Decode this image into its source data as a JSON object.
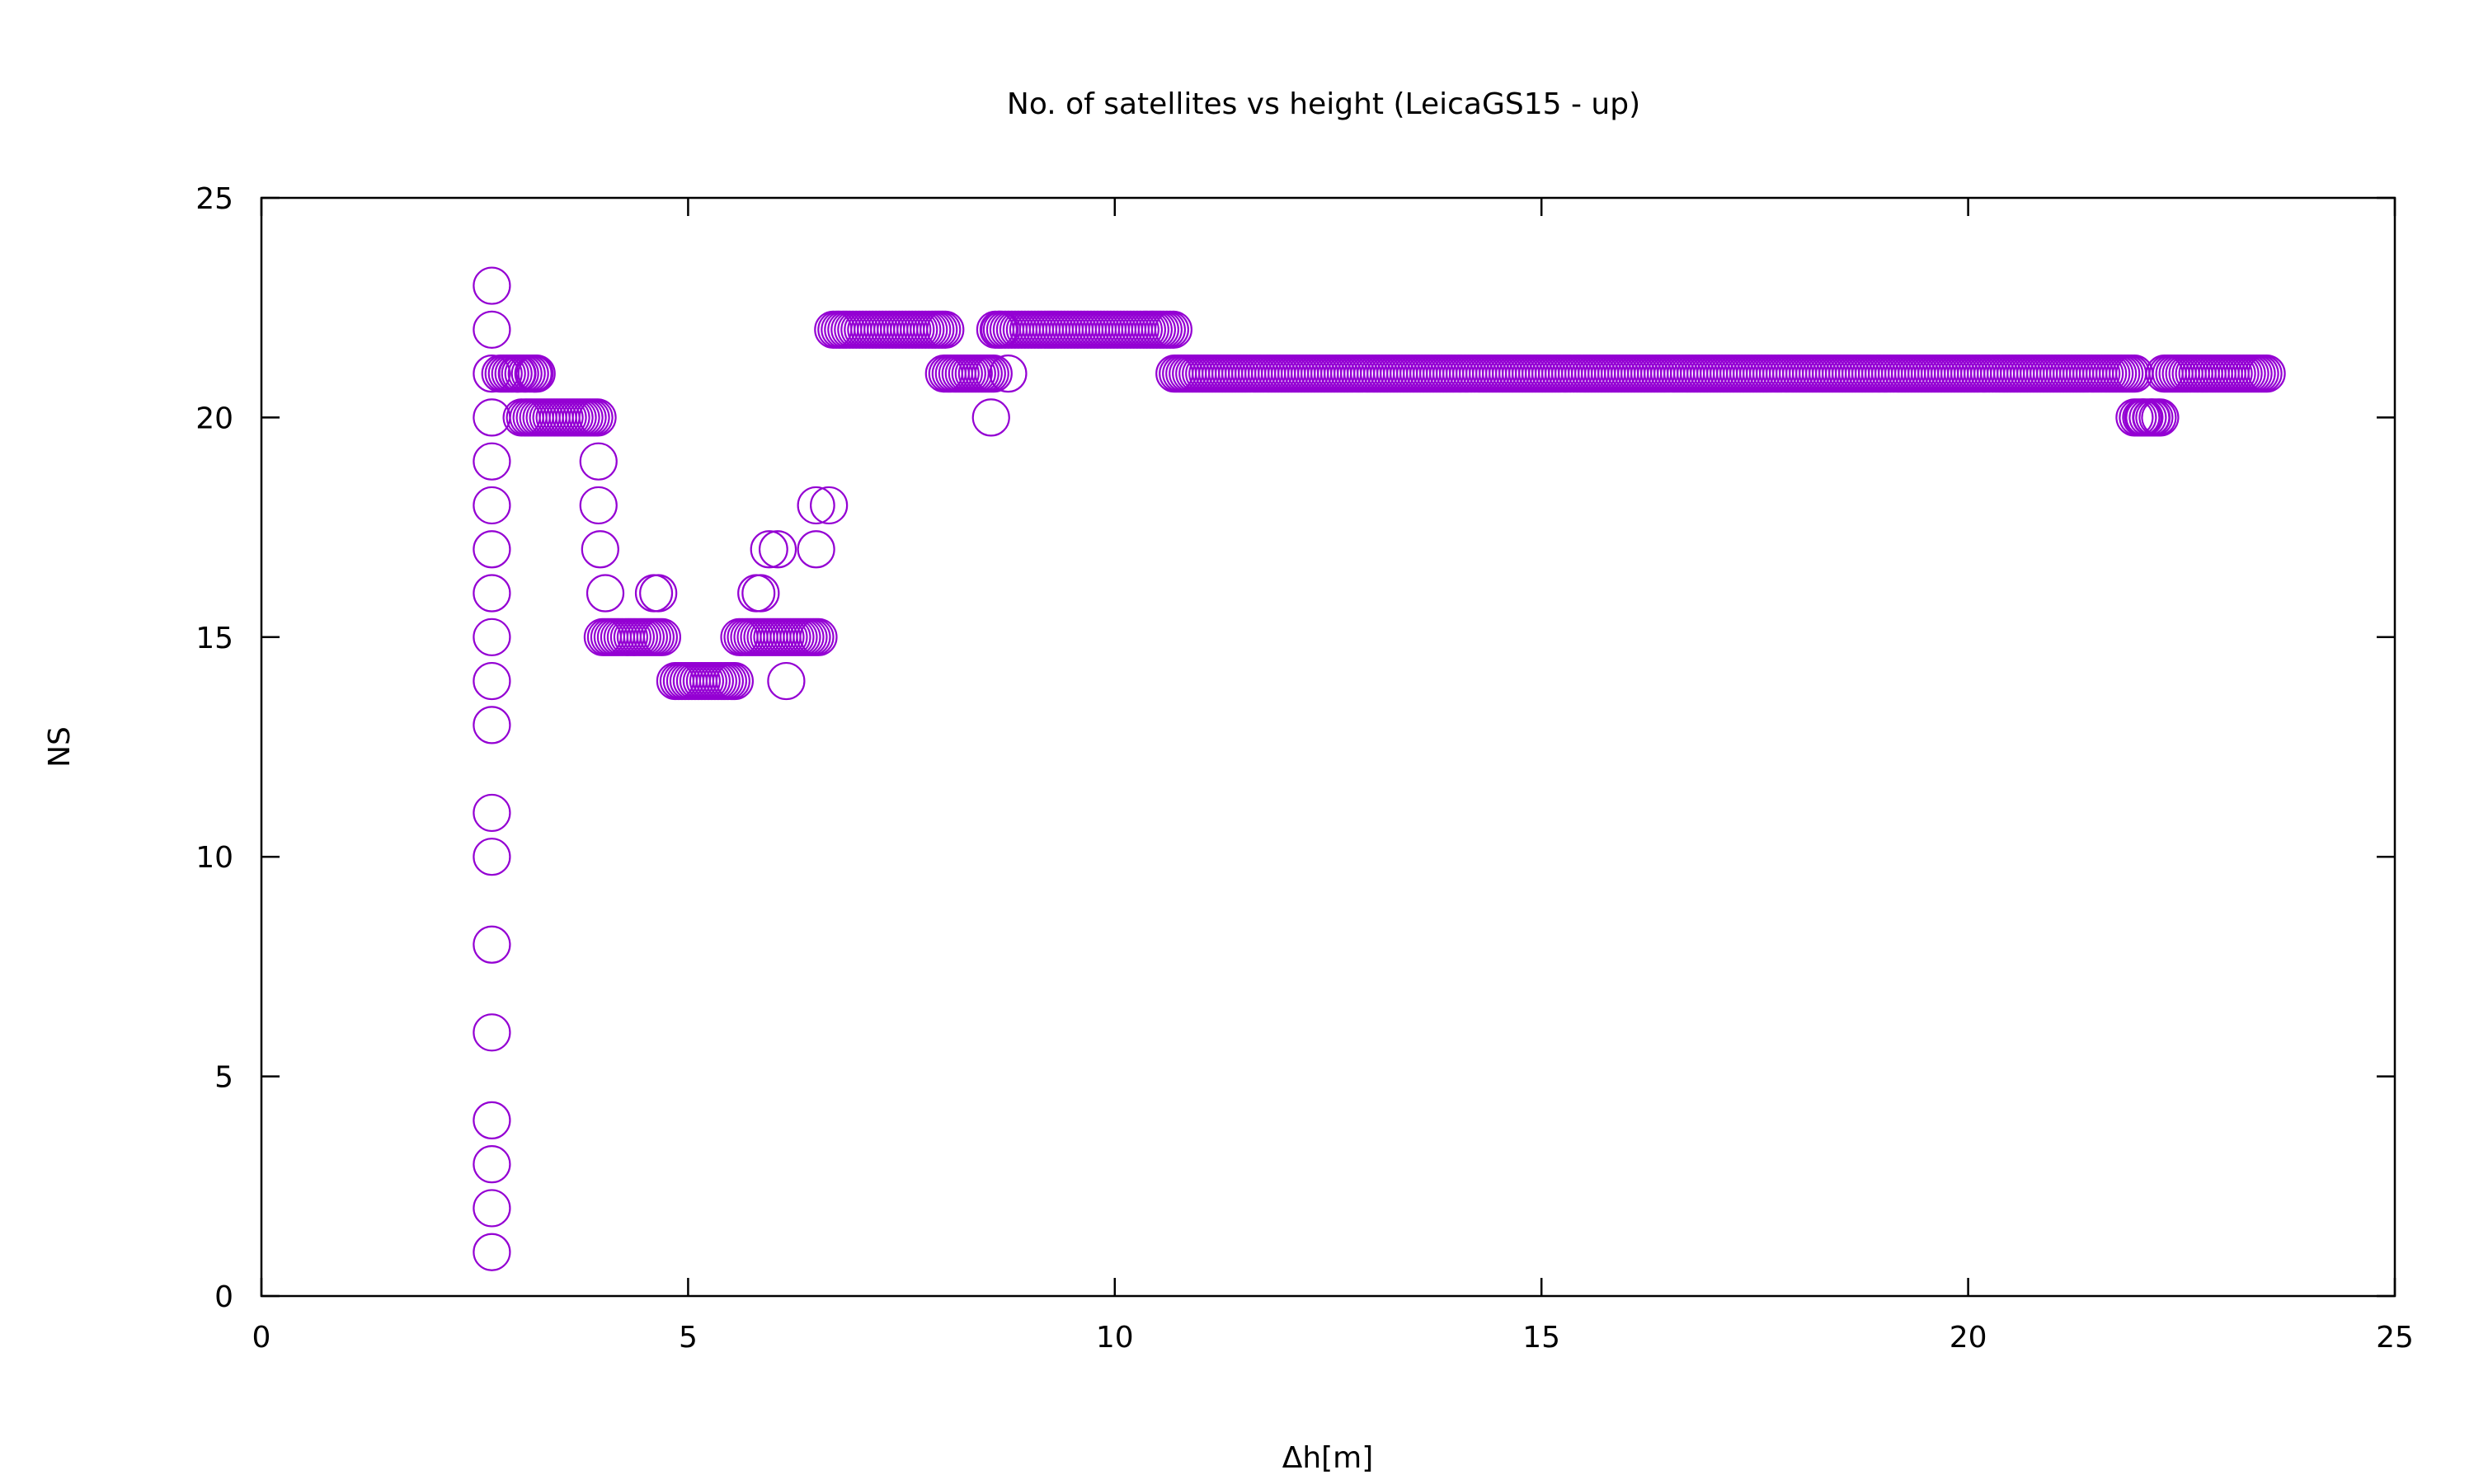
{
  "chart_data": {
    "type": "scatter",
    "title": "No. of satellites vs height (LeicaGS15 - up)",
    "xlabel": "Δh[m]",
    "ylabel": "NS",
    "xlim": [
      0,
      25
    ],
    "ylim": [
      0,
      25
    ],
    "xticks": [
      "0",
      "5",
      "10",
      "15",
      "20",
      "25"
    ],
    "yticks": [
      "0",
      "5",
      "10",
      "15",
      "20",
      "25"
    ],
    "grid": false,
    "legend": "none",
    "marker": "open-circle",
    "color": "#9400d3",
    "series": [
      {
        "points": [
          [
            2.7,
            23
          ],
          [
            2.7,
            22
          ],
          [
            2.7,
            21
          ],
          [
            2.7,
            20
          ],
          [
            2.7,
            19
          ],
          [
            2.7,
            18
          ],
          [
            2.7,
            17
          ],
          [
            2.7,
            16
          ],
          [
            2.7,
            15
          ],
          [
            2.7,
            14
          ],
          [
            2.7,
            13
          ],
          [
            2.7,
            11
          ],
          [
            2.7,
            10
          ],
          [
            2.7,
            8
          ],
          [
            2.7,
            6
          ],
          [
            2.7,
            4
          ],
          [
            2.7,
            3
          ],
          [
            2.7,
            2
          ],
          [
            2.7,
            1
          ],
          [
            3.0,
            21
          ],
          [
            3.2,
            21
          ],
          [
            3.95,
            19
          ],
          [
            3.95,
            18
          ],
          [
            3.97,
            17
          ],
          [
            4.03,
            16
          ],
          [
            4.6,
            16
          ],
          [
            4.65,
            16
          ],
          [
            5.8,
            16
          ],
          [
            5.85,
            16
          ],
          [
            5.95,
            17
          ],
          [
            6.05,
            17
          ],
          [
            6.15,
            14
          ],
          [
            6.5,
            17
          ],
          [
            6.5,
            18
          ],
          [
            6.65,
            18
          ],
          [
            8.55,
            20
          ],
          [
            8.75,
            21
          ],
          [
            8.65,
            22
          ],
          [
            22.05,
            20
          ],
          [
            22.15,
            20
          ],
          [
            22.25,
            20
          ]
        ],
        "runs": [
          {
            "y": 21,
            "x_from": 2.8,
            "x_to": 3.25
          },
          {
            "y": 20,
            "x_from": 3.05,
            "x_to": 3.95
          },
          {
            "y": 15,
            "x_from": 4.0,
            "x_to": 4.7
          },
          {
            "y": 14,
            "x_from": 4.85,
            "x_to": 5.55
          },
          {
            "y": 15,
            "x_from": 5.6,
            "x_to": 6.55
          },
          {
            "y": 22,
            "x_from": 6.7,
            "x_to": 8.05
          },
          {
            "y": 21,
            "x_from": 8.0,
            "x_to": 8.6
          },
          {
            "y": 22,
            "x_from": 8.6,
            "x_to": 10.7
          },
          {
            "y": 21,
            "x_from": 10.7,
            "x_to": 21.95
          },
          {
            "y": 20,
            "x_from": 21.95,
            "x_to": 22.25
          },
          {
            "y": 21,
            "x_from": 22.3,
            "x_to": 23.5
          }
        ]
      }
    ]
  }
}
